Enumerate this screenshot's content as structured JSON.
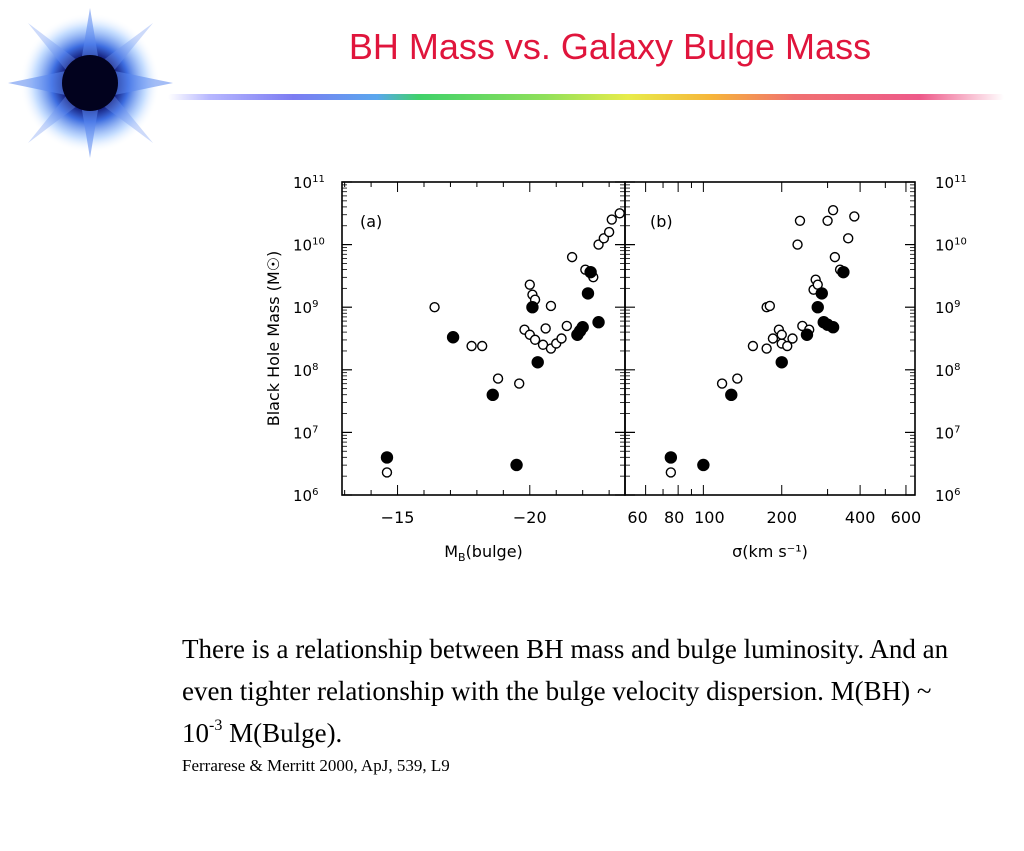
{
  "slide": {
    "title": "BH Mass vs. Galaxy Bulge Mass",
    "body_part1": "There is a relationship between BH mass and bulge luminosity. And an even tighter relationship with the bulge velocity dispersion. M(BH) ~ 10",
    "body_sup": "-3",
    "body_part2": " M(Bulge).",
    "citation": "Ferrarese & Merritt 2000, ApJ, 539, L9"
  },
  "colors": {
    "title": "#e0153c",
    "marker": "#000000"
  },
  "chart_data": [
    {
      "type": "scatter",
      "panel_label": "(a)",
      "xlabel": "M_B(bulge)",
      "ylabel": "Black Hole Mass (M☉)",
      "x_ticks": [
        "-15",
        "-20"
      ],
      "y_ticks": [
        "10^6",
        "10^7",
        "10^8",
        "10^9",
        "10^10",
        "10^11"
      ],
      "x_reversed": true,
      "xlim": [
        -12.9,
        -23.6
      ],
      "ylim": [
        6,
        11
      ],
      "y_log_scale": true,
      "series": [
        {
          "marker": "open",
          "points": [
            [
              -16.4,
              9.0
            ],
            [
              -17.8,
              8.38
            ],
            [
              -18.2,
              8.38
            ],
            [
              -18.8,
              7.86
            ],
            [
              -19.6,
              7.78
            ],
            [
              -19.8,
              8.64
            ],
            [
              -20.0,
              8.56
            ],
            [
              -20.2,
              8.48
            ],
            [
              -20.5,
              8.4
            ],
            [
              -20.6,
              8.66
            ],
            [
              -20.8,
              8.34
            ],
            [
              -21.0,
              8.42
            ],
            [
              -21.2,
              8.5
            ],
            [
              -21.4,
              8.7
            ],
            [
              -20.0,
              9.36
            ],
            [
              -20.1,
              9.2
            ],
            [
              -20.2,
              9.12
            ],
            [
              -20.8,
              9.02
            ],
            [
              -21.6,
              9.8
            ],
            [
              -22.1,
              9.6
            ],
            [
              -22.4,
              9.48
            ],
            [
              -22.6,
              10.0
            ],
            [
              -22.8,
              10.1
            ],
            [
              -23.0,
              10.2
            ],
            [
              -23.1,
              10.4
            ],
            [
              -23.4,
              10.5
            ],
            [
              -14.6,
              6.36
            ]
          ]
        },
        {
          "marker": "filled",
          "points": [
            [
              -14.6,
              6.6
            ],
            [
              -17.1,
              8.52
            ],
            [
              -18.6,
              7.6
            ],
            [
              -19.5,
              6.48
            ],
            [
              -20.1,
              9.0
            ],
            [
              -20.3,
              8.12
            ],
            [
              -21.9,
              8.62
            ],
            [
              -22.0,
              8.68
            ],
            [
              -22.2,
              9.22
            ],
            [
              -22.3,
              9.56
            ],
            [
              -22.6,
              8.76
            ],
            [
              -21.8,
              8.56
            ]
          ]
        }
      ]
    },
    {
      "type": "scatter",
      "panel_label": "(b)",
      "xlabel": "σ(km s⁻¹)",
      "x_ticks": [
        "60",
        "80",
        "100",
        "200",
        "400",
        "600"
      ],
      "x_log_scale": true,
      "xlim": [
        50,
        650
      ],
      "ylim": [
        6,
        11
      ],
      "y_log_scale": true,
      "y_ticks_right": [
        "10^6",
        "10^7",
        "10^8",
        "10^9",
        "10^10",
        "10^11"
      ],
      "series": [
        {
          "marker": "open",
          "points": [
            [
              75,
              6.36
            ],
            [
              118,
              7.78
            ],
            [
              135,
              7.86
            ],
            [
              155,
              8.38
            ],
            [
              175,
              9.0
            ],
            [
              180,
              9.02
            ],
            [
              175,
              8.34
            ],
            [
              185,
              8.5
            ],
            [
              195,
              8.64
            ],
            [
              200,
              8.42
            ],
            [
              210,
              8.38
            ],
            [
              220,
              8.5
            ],
            [
              200,
              8.56
            ],
            [
              240,
              8.7
            ],
            [
              255,
              8.64
            ],
            [
              265,
              9.28
            ],
            [
              270,
              9.44
            ],
            [
              275,
              9.36
            ],
            [
              230,
              10.0
            ],
            [
              235,
              10.38
            ],
            [
              300,
              10.38
            ],
            [
              315,
              10.55
            ],
            [
              320,
              9.8
            ],
            [
              360,
              10.1
            ],
            [
              380,
              10.45
            ],
            [
              335,
              9.6
            ]
          ]
        },
        {
          "marker": "filled",
          "points": [
            [
              75,
              6.6
            ],
            [
              100,
              6.48
            ],
            [
              128,
              7.6
            ],
            [
              200,
              8.12
            ],
            [
              250,
              8.56
            ],
            [
              275,
              9.0
            ],
            [
              285,
              9.22
            ],
            [
              290,
              8.76
            ],
            [
              300,
              8.72
            ],
            [
              315,
              8.68
            ],
            [
              345,
              9.56
            ]
          ]
        }
      ]
    }
  ]
}
